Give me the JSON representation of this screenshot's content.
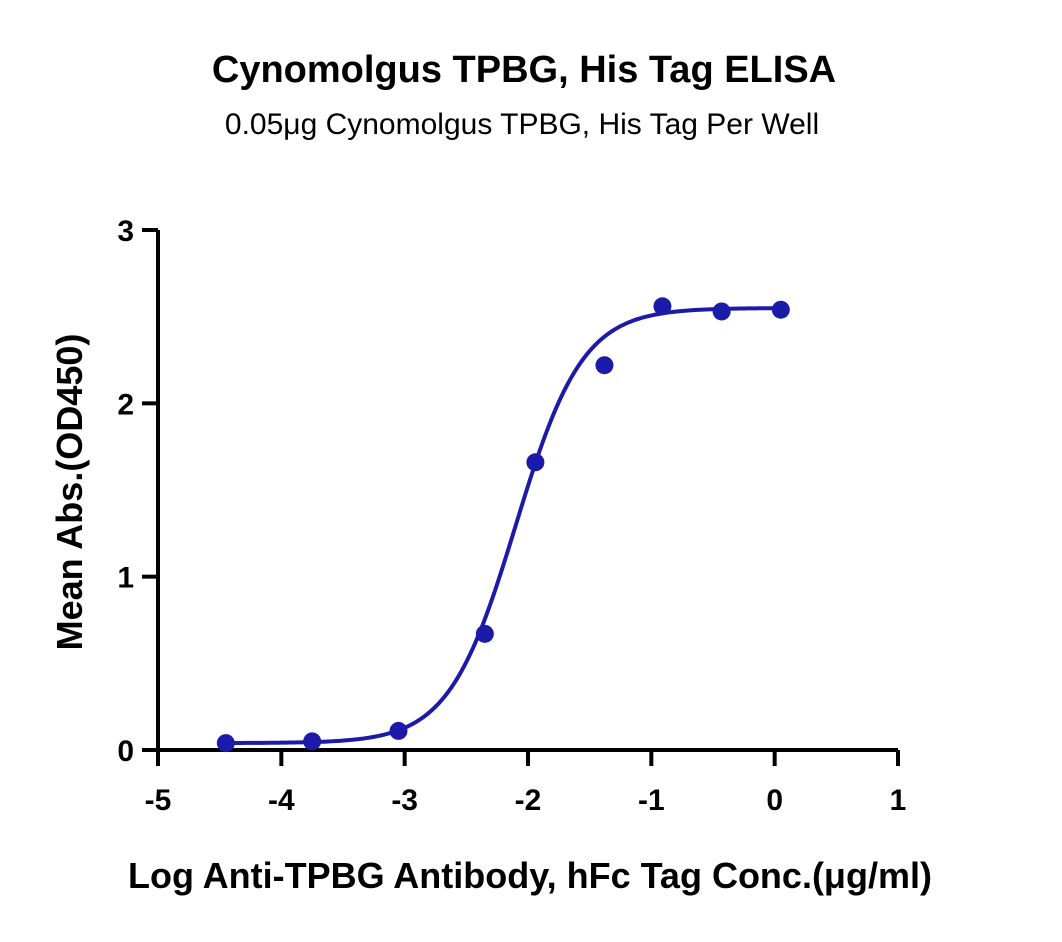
{
  "chart_data": {
    "type": "scatter",
    "title": "Cynomolgus TPBG, His Tag ELISA",
    "subtitle": "0.05μg Cynomolgus TPBG, His Tag Per Well",
    "xlabel": "Log Anti-TPBG Antibody, hFc Tag Conc.(μg/ml)",
    "ylabel": "Mean Abs.(OD450)",
    "xlim": [
      -5,
      1
    ],
    "ylim": [
      0,
      3
    ],
    "xticks": [
      -5,
      -4,
      -3,
      -2,
      -1,
      0,
      1
    ],
    "yticks": [
      0,
      1,
      2,
      3
    ],
    "grid": false,
    "color": "#1c1aa8",
    "points": [
      {
        "x": -4.45,
        "y": 0.04
      },
      {
        "x": -3.75,
        "y": 0.05
      },
      {
        "x": -3.05,
        "y": 0.11
      },
      {
        "x": -2.35,
        "y": 0.67
      },
      {
        "x": -1.94,
        "y": 1.66
      },
      {
        "x": -1.38,
        "y": 2.22
      },
      {
        "x": -0.91,
        "y": 2.56
      },
      {
        "x": -0.43,
        "y": 2.53
      },
      {
        "x": 0.05,
        "y": 2.54
      }
    ],
    "fit": {
      "type": "4PL",
      "bottom": 0.04,
      "top": 2.55,
      "logEC50": -2.1,
      "hill": 1.6,
      "xrange": [
        -4.45,
        0.05
      ]
    }
  }
}
